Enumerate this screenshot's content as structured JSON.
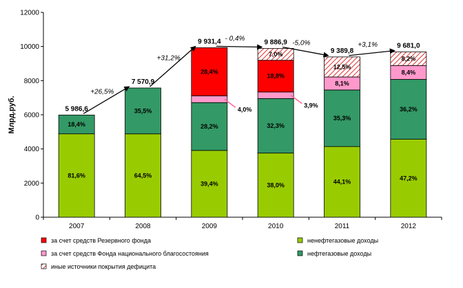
{
  "chart_data": {
    "type": "bar",
    "stacked": true,
    "ylabel": "Млрд.руб.",
    "ylim": [
      0,
      12000
    ],
    "yticks": [
      "0",
      "2000",
      "4000",
      "6000",
      "8000",
      "10000",
      "12000"
    ],
    "categories": [
      "2007",
      "2008",
      "2009",
      "2010",
      "2011",
      "2012"
    ],
    "series": [
      {
        "key": "nonoil",
        "name": "ненефтегазовые доходы",
        "color": "#99CC00",
        "values": [
          4885,
          4883,
          3913,
          3757,
          4141,
          4569
        ],
        "labels": [
          "81,6%",
          "64,5%",
          "39,4%",
          "38,0%",
          "44,1%",
          "47,2%"
        ]
      },
      {
        "key": "oil",
        "name": "нефтегазовые доходы",
        "color": "#339966",
        "values": [
          1102,
          2688,
          2801,
          3193,
          3314,
          3505
        ],
        "labels": [
          "18,4%",
          "35,5%",
          "28,2%",
          "32,3%",
          "35,3%",
          "36,2%"
        ]
      },
      {
        "key": "nwf",
        "name": "за счет средств Фонда национального благосостояния",
        "color": "#FF99CC",
        "values": [
          0,
          0,
          397,
          386,
          761,
          813
        ],
        "labels": [
          "",
          "",
          "4,0%",
          "3,9%",
          "8,1%",
          "8,4%"
        ]
      },
      {
        "key": "reserve",
        "name": "за счет средств Резервного фонда",
        "color": "#FF0000",
        "values": [
          0,
          0,
          2820,
          1859,
          0,
          0
        ],
        "labels": [
          "",
          "",
          "28,4%",
          "18,8%",
          "",
          ""
        ]
      },
      {
        "key": "other",
        "name": "иные источники покрытия дефицита",
        "color": "#FF6666",
        "hatched": true,
        "values": [
          0,
          0,
          0,
          692,
          1174,
          794
        ],
        "labels": [
          "",
          "",
          "",
          "7,0%",
          "12,5%",
          "8,2%"
        ]
      }
    ],
    "totals": [
      "5 986,6",
      "7 570,9",
      "9 931,4",
      "9 886,9",
      "9 389,8",
      "9 681,0"
    ],
    "growth": [
      "+26,5%",
      "+31,2%",
      "- 0,4%",
      "-5,0%",
      "+3,1%"
    ],
    "legend_left": [
      "reserve",
      "nwf",
      "other"
    ],
    "legend_right": [
      "nonoil",
      "oil"
    ]
  }
}
